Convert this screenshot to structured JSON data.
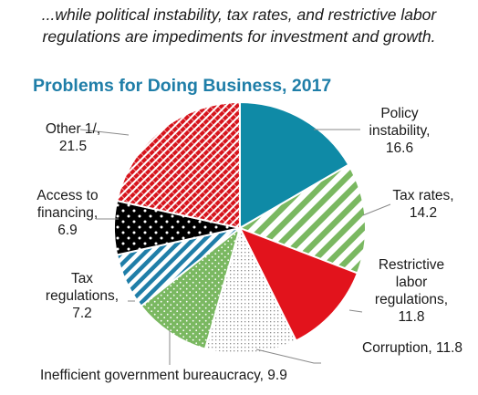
{
  "header": {
    "subtitle_line1": "...while political instability, tax rates, and restrictive labor",
    "subtitle_line2": "regulations are impediments for investment and growth."
  },
  "chart_data": {
    "type": "pie",
    "title": "Problems for Doing Business, 2017",
    "slices": [
      {
        "label_lines": [
          "Policy",
          "instability,",
          "16.6"
        ],
        "value": 16.6,
        "color": "#0f8aa6",
        "pattern": "solid"
      },
      {
        "label_lines": [
          "Tax rates,",
          "14.2"
        ],
        "value": 14.2,
        "color": "#7ab861",
        "pattern": "wide-diagonal-stripes"
      },
      {
        "label_lines": [
          "Restrictive",
          "labor",
          "regulations,",
          "11.8"
        ],
        "value": 11.8,
        "color": "#e2131c",
        "pattern": "solid"
      },
      {
        "label_lines": [
          "Corruption, 11.8"
        ],
        "value": 11.8,
        "color": "#9a9a9a",
        "pattern": "fine-dots"
      },
      {
        "label_lines": [
          "Inefficient government bureaucracy, 9.9"
        ],
        "value": 9.9,
        "color": "#7ab861",
        "pattern": "dots-on-green"
      },
      {
        "label_lines": [
          "Tax",
          "regulations,",
          "7.2"
        ],
        "value": 7.2,
        "color": "#1f7ea8",
        "pattern": "diagonal-stripes"
      },
      {
        "label_lines": [
          "Access to",
          "financing,",
          "6.9"
        ],
        "value": 6.9,
        "color": "#000000",
        "pattern": "white-dots-on-black"
      },
      {
        "label_lines": [
          "Other 1/,",
          "21.5"
        ],
        "value": 21.5,
        "color": "#d6141c",
        "pattern": "red-diagonal-hatch"
      }
    ]
  }
}
